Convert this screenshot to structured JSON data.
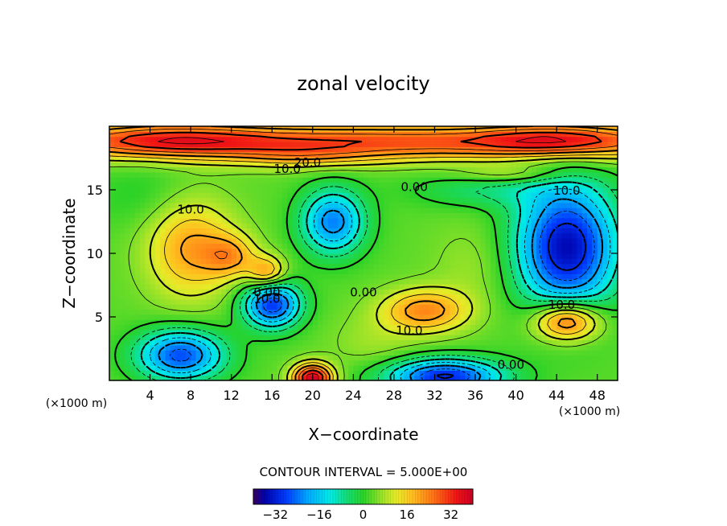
{
  "chart_data": {
    "type": "heatmap",
    "title": "zonal velocity",
    "xlabel": "X−coordinate",
    "ylabel": "Z−coordinate",
    "x_unit_left": "(×1000 m)",
    "x_unit_right": "(×1000 m)",
    "xlim": [
      0,
      50
    ],
    "ylim": [
      0,
      20
    ],
    "xticks": [
      4,
      8,
      12,
      16,
      20,
      24,
      28,
      32,
      36,
      40,
      44,
      48
    ],
    "yticks": [
      5,
      10,
      15
    ],
    "contour_interval_text": "CONTOUR INTERVAL = 5.000E+00",
    "colorbar": {
      "range": [
        -40,
        40
      ],
      "ticks": [
        -32,
        -16,
        0,
        16,
        32
      ],
      "tick_labels": [
        "−32",
        "−16",
        "0",
        "16",
        "32"
      ]
    },
    "contour_labels": [
      {
        "text": "20.0",
        "x": 19.5,
        "y": 17.2
      },
      {
        "text": "10.0",
        "x": 17.5,
        "y": 16.7
      },
      {
        "text": "10.0",
        "x": 8.0,
        "y": 13.5
      },
      {
        "text": "0.00",
        "x": 30.0,
        "y": 15.3
      },
      {
        "text": "10.0",
        "x": 45.0,
        "y": 15.0
      },
      {
        "text": "0.00",
        "x": 15.5,
        "y": 7.0
      },
      {
        "text": "10.0",
        "x": 15.5,
        "y": 6.5
      },
      {
        "text": "0.00",
        "x": 25.0,
        "y": 7.0
      },
      {
        "text": "10.0",
        "x": 44.5,
        "y": 6.0
      },
      {
        "text": "10.0",
        "x": 29.5,
        "y": 4.0
      },
      {
        "text": "0.00",
        "x": 39.5,
        "y": 1.3
      }
    ],
    "field_features": [
      {
        "x": 25,
        "y": 18.8,
        "sx": 30,
        "sy": 1.0,
        "v": 26
      },
      {
        "x": 6,
        "y": 19.0,
        "sx": 6,
        "sy": 1.0,
        "v": 12
      },
      {
        "x": 44,
        "y": 19.0,
        "sx": 5,
        "sy": 0.9,
        "v": 14
      },
      {
        "x": 19,
        "y": 17.6,
        "sx": 5,
        "sy": 0.7,
        "v": 8
      },
      {
        "x": 45,
        "y": 10.5,
        "sx": 3.5,
        "sy": 3.5,
        "v": -38
      },
      {
        "x": 22,
        "y": 12.5,
        "sx": 2.2,
        "sy": 1.8,
        "v": -26
      },
      {
        "x": 16,
        "y": 6.0,
        "sx": 2.0,
        "sy": 1.3,
        "v": -32
      },
      {
        "x": 7,
        "y": 2.0,
        "sx": 3.0,
        "sy": 1.4,
        "v": -30
      },
      {
        "x": 33,
        "y": 0.3,
        "sx": 4.0,
        "sy": 1.0,
        "v": -34
      },
      {
        "x": 37,
        "y": 15.0,
        "sx": 5.0,
        "sy": 1.0,
        "v": -8
      },
      {
        "x": 8,
        "y": 10.5,
        "sx": 3.0,
        "sy": 2.8,
        "v": 18
      },
      {
        "x": 12,
        "y": 9.8,
        "sx": 1.8,
        "sy": 1.2,
        "v": 14
      },
      {
        "x": 15.5,
        "y": 8.5,
        "sx": 1.3,
        "sy": 0.9,
        "v": 18
      },
      {
        "x": 31,
        "y": 5.5,
        "sx": 3.0,
        "sy": 1.2,
        "v": 20
      },
      {
        "x": 45,
        "y": 4.7,
        "sx": 2.3,
        "sy": 1.1,
        "v": 28
      },
      {
        "x": 20,
        "y": 0.2,
        "sx": 1.4,
        "sy": 0.8,
        "v": 36
      },
      {
        "x": 4,
        "y": 14.5,
        "sx": 4.0,
        "sy": 2.0,
        "v": -4
      },
      {
        "x": 36,
        "y": 9.0,
        "sx": 3.0,
        "sy": 2.5,
        "v": 4
      },
      {
        "x": 26,
        "y": 3.0,
        "sx": 3.0,
        "sy": 1.5,
        "v": 4
      },
      {
        "x": 40,
        "y": 16.2,
        "sx": 4,
        "sy": 0.5,
        "v": 8
      }
    ]
  }
}
